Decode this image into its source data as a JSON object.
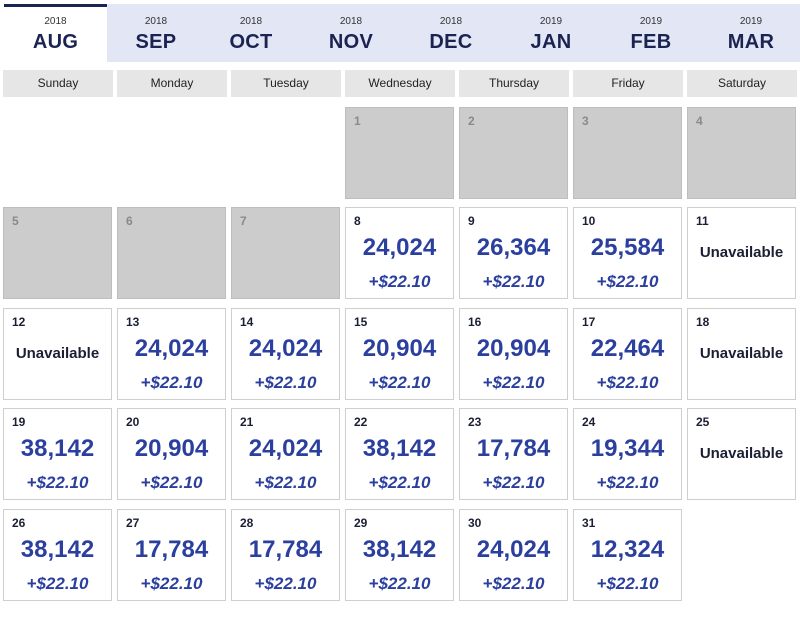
{
  "months": [
    {
      "year": "2018",
      "month": "AUG",
      "active": true
    },
    {
      "year": "2018",
      "month": "SEP",
      "active": false
    },
    {
      "year": "2018",
      "month": "OCT",
      "active": false
    },
    {
      "year": "2018",
      "month": "NOV",
      "active": false
    },
    {
      "year": "2018",
      "month": "DEC",
      "active": false
    },
    {
      "year": "2019",
      "month": "JAN",
      "active": false
    },
    {
      "year": "2019",
      "month": "FEB",
      "active": false
    },
    {
      "year": "2019",
      "month": "MAR",
      "active": false
    }
  ],
  "weekdays": [
    "Sunday",
    "Monday",
    "Tuesday",
    "Wednesday",
    "Thursday",
    "Friday",
    "Saturday"
  ],
  "unavailable_label": "Unavailable",
  "days": [
    {
      "day": "1",
      "status": "disabled"
    },
    {
      "day": "2",
      "status": "disabled"
    },
    {
      "day": "3",
      "status": "disabled"
    },
    {
      "day": "4",
      "status": "disabled"
    },
    {
      "day": "5",
      "status": "disabled"
    },
    {
      "day": "6",
      "status": "disabled"
    },
    {
      "day": "7",
      "status": "disabled"
    },
    {
      "day": "8",
      "status": "available",
      "points": "24,024",
      "fee": "+$22.10"
    },
    {
      "day": "9",
      "status": "available",
      "points": "26,364",
      "fee": "+$22.10"
    },
    {
      "day": "10",
      "status": "available",
      "points": "25,584",
      "fee": "+$22.10"
    },
    {
      "day": "11",
      "status": "unavailable"
    },
    {
      "day": "12",
      "status": "unavailable"
    },
    {
      "day": "13",
      "status": "available",
      "points": "24,024",
      "fee": "+$22.10"
    },
    {
      "day": "14",
      "status": "available",
      "points": "24,024",
      "fee": "+$22.10"
    },
    {
      "day": "15",
      "status": "available",
      "points": "20,904",
      "fee": "+$22.10"
    },
    {
      "day": "16",
      "status": "available",
      "points": "20,904",
      "fee": "+$22.10"
    },
    {
      "day": "17",
      "status": "available",
      "points": "22,464",
      "fee": "+$22.10"
    },
    {
      "day": "18",
      "status": "unavailable"
    },
    {
      "day": "19",
      "status": "available",
      "points": "38,142",
      "fee": "+$22.10"
    },
    {
      "day": "20",
      "status": "available",
      "points": "20,904",
      "fee": "+$22.10"
    },
    {
      "day": "21",
      "status": "available",
      "points": "24,024",
      "fee": "+$22.10"
    },
    {
      "day": "22",
      "status": "available",
      "points": "38,142",
      "fee": "+$22.10"
    },
    {
      "day": "23",
      "status": "available",
      "points": "17,784",
      "fee": "+$22.10"
    },
    {
      "day": "24",
      "status": "available",
      "points": "19,344",
      "fee": "+$22.10"
    },
    {
      "day": "25",
      "status": "unavailable"
    },
    {
      "day": "26",
      "status": "available",
      "points": "38,142",
      "fee": "+$22.10"
    },
    {
      "day": "27",
      "status": "available",
      "points": "17,784",
      "fee": "+$22.10"
    },
    {
      "day": "28",
      "status": "available",
      "points": "17,784",
      "fee": "+$22.10"
    },
    {
      "day": "29",
      "status": "available",
      "points": "38,142",
      "fee": "+$22.10"
    },
    {
      "day": "30",
      "status": "available",
      "points": "24,024",
      "fee": "+$22.10"
    },
    {
      "day": "31",
      "status": "available",
      "points": "12,324",
      "fee": "+$22.10"
    }
  ]
}
